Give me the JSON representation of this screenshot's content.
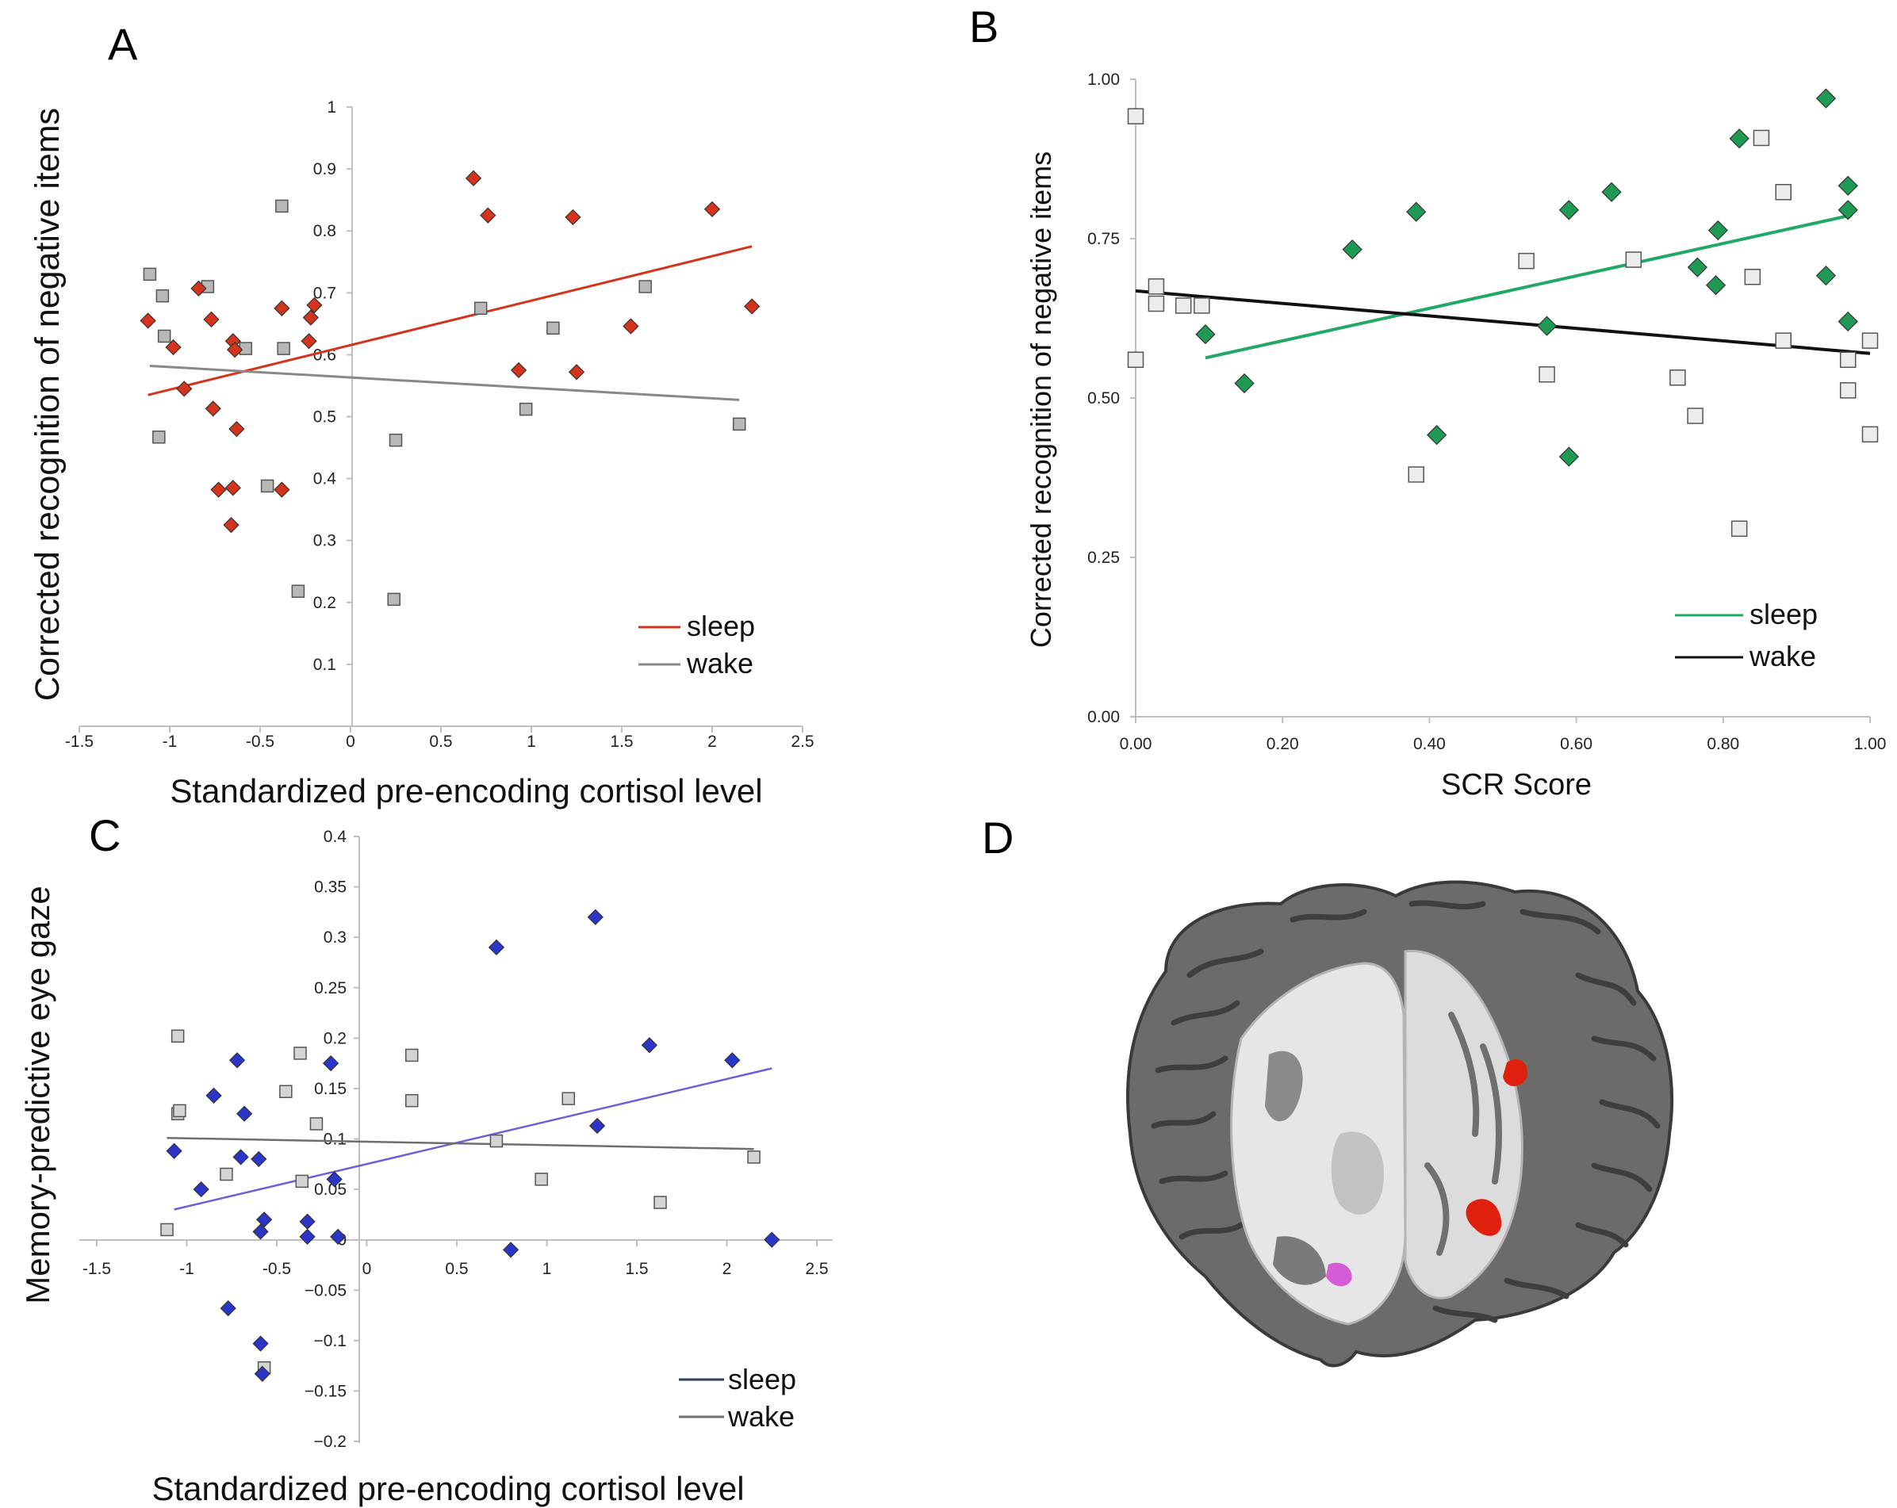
{
  "chart_data": [
    {
      "panel": "A",
      "type": "scatter",
      "xlabel": "Standardized pre-encoding cortisol level",
      "ylabel": "Corrected recognition of negative items",
      "xlim": [
        -1.5,
        2.5
      ],
      "ylim": [
        0,
        1
      ],
      "xticks": [
        -1.5,
        -1,
        -0.5,
        0,
        0.5,
        1,
        1.5,
        2,
        2.5
      ],
      "yticks": [
        0.1,
        0.2,
        0.3,
        0.4,
        0.5,
        0.6,
        0.7,
        0.8,
        0.9,
        1
      ],
      "xtick_labels": [
        "-1.5",
        "-1",
        "-0.5",
        "0",
        "0.5",
        "1",
        "1.5",
        "2",
        "2.5"
      ],
      "ytick_labels": [
        "0.1",
        "0.2",
        "0.3",
        "0.4",
        "0.5",
        "0.6",
        "0.7",
        "0.8",
        "0.9",
        "1"
      ],
      "legend_position": "bottom-right",
      "series": [
        {
          "name": "sleep",
          "marker": "diamond",
          "color": "#d4341c",
          "line_color": "#d4341c",
          "points": [
            [
              -1.12,
              0.655
            ],
            [
              -0.98,
              0.612
            ],
            [
              -0.92,
              0.545
            ],
            [
              -0.84,
              0.707
            ],
            [
              -0.77,
              0.657
            ],
            [
              -0.76,
              0.513
            ],
            [
              -0.73,
              0.382
            ],
            [
              -0.66,
              0.325
            ],
            [
              -0.65,
              0.385
            ],
            [
              -0.65,
              0.622
            ],
            [
              -0.64,
              0.608
            ],
            [
              -0.63,
              0.48
            ],
            [
              -0.38,
              0.382
            ],
            [
              -0.38,
              0.675
            ],
            [
              -0.23,
              0.622
            ],
            [
              -0.22,
              0.66
            ],
            [
              -0.2,
              0.68
            ],
            [
              0.68,
              0.885
            ],
            [
              0.76,
              0.825
            ],
            [
              0.93,
              0.575
            ],
            [
              1.23,
              0.822
            ],
            [
              1.25,
              0.572
            ],
            [
              1.55,
              0.646
            ],
            [
              2.0,
              0.835
            ],
            [
              2.22,
              0.678
            ]
          ],
          "trend": [
            [
              -1.12,
              0.535
            ],
            [
              2.22,
              0.775
            ]
          ]
        },
        {
          "name": "wake",
          "marker": "square",
          "color": "#b8b8b8",
          "line_color": "#888888",
          "points": [
            [
              -1.11,
              0.73
            ],
            [
              -1.06,
              0.467
            ],
            [
              -1.04,
              0.695
            ],
            [
              -1.03,
              0.63
            ],
            [
              -0.79,
              0.71
            ],
            [
              -0.58,
              0.61
            ],
            [
              -0.46,
              0.388
            ],
            [
              -0.38,
              0.84
            ],
            [
              -0.37,
              0.61
            ],
            [
              -0.29,
              0.218
            ],
            [
              0.24,
              0.205
            ],
            [
              0.25,
              0.462
            ],
            [
              0.72,
              0.675
            ],
            [
              0.97,
              0.512
            ],
            [
              1.12,
              0.643
            ],
            [
              1.63,
              0.71
            ],
            [
              2.15,
              0.488
            ]
          ],
          "trend": [
            [
              -1.11,
              0.582
            ],
            [
              2.15,
              0.527
            ]
          ]
        }
      ]
    },
    {
      "panel": "B",
      "type": "scatter",
      "xlabel": "SCR Score",
      "ylabel": "Corrected recognition of negative items",
      "xlim": [
        0,
        1
      ],
      "ylim": [
        0,
        1
      ],
      "xticks": [
        0,
        0.2,
        0.4,
        0.6,
        0.8,
        1.0
      ],
      "yticks": [
        0,
        0.25,
        0.5,
        0.75,
        1.0
      ],
      "xtick_labels": [
        "0.00",
        "0.20",
        "0.40",
        "0.60",
        "0.80",
        "1.00"
      ],
      "ytick_labels": [
        "0.00",
        "0.25",
        "0.50",
        "0.75",
        "1.00"
      ],
      "legend_position": "bottom-right",
      "series": [
        {
          "name": "sleep",
          "marker": "diamond",
          "color": "#1e9a55",
          "line_color": "#22a866",
          "points": [
            [
              0.095,
              0.6
            ],
            [
              0.148,
              0.523
            ],
            [
              0.295,
              0.733
            ],
            [
              0.382,
              0.792
            ],
            [
              0.41,
              0.442
            ],
            [
              0.56,
              0.613
            ],
            [
              0.59,
              0.408
            ],
            [
              0.59,
              0.795
            ],
            [
              0.648,
              0.823
            ],
            [
              0.765,
              0.705
            ],
            [
              0.79,
              0.677
            ],
            [
              0.793,
              0.763
            ],
            [
              0.822,
              0.907
            ],
            [
              0.94,
              0.97
            ],
            [
              0.94,
              0.692
            ],
            [
              0.97,
              0.833
            ],
            [
              0.97,
              0.795
            ],
            [
              0.97,
              0.62
            ]
          ],
          "trend": [
            [
              0.095,
              0.563
            ],
            [
              0.975,
              0.787
            ]
          ]
        },
        {
          "name": "wake",
          "marker": "square",
          "color": "#ececec",
          "line_color": "#111111",
          "points": [
            [
              0.0,
              0.942
            ],
            [
              0.0,
              0.56
            ],
            [
              0.028,
              0.675
            ],
            [
              0.028,
              0.648
            ],
            [
              0.065,
              0.645
            ],
            [
              0.09,
              0.645
            ],
            [
              0.382,
              0.38
            ],
            [
              0.532,
              0.715
            ],
            [
              0.56,
              0.537
            ],
            [
              0.678,
              0.717
            ],
            [
              0.738,
              0.532
            ],
            [
              0.762,
              0.472
            ],
            [
              0.822,
              0.295
            ],
            [
              0.84,
              0.69
            ],
            [
              0.852,
              0.908
            ],
            [
              0.882,
              0.823
            ],
            [
              0.882,
              0.59
            ],
            [
              0.97,
              0.56
            ],
            [
              0.97,
              0.512
            ],
            [
              1.0,
              0.59
            ],
            [
              1.0,
              0.443
            ]
          ],
          "trend": [
            [
              0.0,
              0.668
            ],
            [
              1.0,
              0.57
            ]
          ]
        }
      ]
    },
    {
      "panel": "C",
      "type": "scatter",
      "xlabel": "Standardized pre-encoding cortisol level",
      "ylabel": "Memory-predictive eye gaze",
      "xlim": [
        -1.5,
        2.5
      ],
      "ylim": [
        -0.2,
        0.4
      ],
      "xticks": [
        -1.5,
        -1,
        -0.5,
        0,
        0.5,
        1,
        1.5,
        2,
        2.5
      ],
      "yticks": [
        -0.2,
        -0.15,
        -0.1,
        -0.05,
        0,
        0.05,
        0.1,
        0.15,
        0.2,
        0.25,
        0.3,
        0.35,
        0.4
      ],
      "xtick_labels": [
        "-1.5",
        "-1",
        "-0.5",
        "0",
        "0.5",
        "1",
        "1.5",
        "2",
        "2.5"
      ],
      "ytick_labels": [
        "−0.2",
        "−0.15",
        "−0.1",
        "−0.05",
        "0",
        "0.05",
        "0.1",
        "0.15",
        "0.2",
        "0.25",
        "0.3",
        "0.35",
        "0.4"
      ],
      "legend_position": "bottom-right",
      "series": [
        {
          "name": "sleep",
          "marker": "diamond",
          "color": "#2b35c8",
          "line_color": "#6a5fd8",
          "legend_color": "#2f3f5a",
          "points": [
            [
              -1.07,
              0.088
            ],
            [
              -0.92,
              0.05
            ],
            [
              -0.85,
              0.143
            ],
            [
              -0.77,
              -0.068
            ],
            [
              -0.72,
              0.178
            ],
            [
              -0.7,
              0.082
            ],
            [
              -0.68,
              0.125
            ],
            [
              -0.6,
              0.08
            ],
            [
              -0.59,
              -0.103
            ],
            [
              -0.59,
              0.008
            ],
            [
              -0.58,
              -0.133
            ],
            [
              -0.57,
              0.02
            ],
            [
              -0.33,
              0.018
            ],
            [
              -0.33,
              0.003
            ],
            [
              -0.2,
              0.175
            ],
            [
              -0.18,
              0.06
            ],
            [
              -0.16,
              0.003
            ],
            [
              0.72,
              0.29
            ],
            [
              0.8,
              -0.01
            ],
            [
              1.27,
              0.32
            ],
            [
              1.28,
              0.113
            ],
            [
              1.57,
              0.193
            ],
            [
              2.03,
              0.178
            ],
            [
              2.25,
              0.0
            ]
          ],
          "trend": [
            [
              -1.07,
              0.03
            ],
            [
              2.25,
              0.17
            ]
          ]
        },
        {
          "name": "wake",
          "marker": "square",
          "color": "#d4d4d4",
          "line_color": "#6e6e6e",
          "points": [
            [
              -1.11,
              0.01
            ],
            [
              -1.05,
              0.202
            ],
            [
              -1.05,
              0.125
            ],
            [
              -1.04,
              0.128
            ],
            [
              -0.78,
              0.065
            ],
            [
              -0.45,
              0.147
            ],
            [
              -0.37,
              0.185
            ],
            [
              -0.36,
              0.058
            ],
            [
              -0.28,
              0.115
            ],
            [
              -0.57,
              -0.127
            ],
            [
              0.25,
              0.183
            ],
            [
              0.25,
              0.138
            ],
            [
              0.72,
              0.098
            ],
            [
              0.97,
              0.06
            ],
            [
              1.12,
              0.14
            ],
            [
              1.63,
              0.037
            ],
            [
              2.15,
              0.082
            ]
          ],
          "trend": [
            [
              -1.11,
              0.101
            ],
            [
              2.15,
              0.09
            ]
          ]
        }
      ]
    }
  ],
  "panels": {
    "A": {
      "letter": "A"
    },
    "B": {
      "letter": "B"
    },
    "C": {
      "letter": "C"
    },
    "D": {
      "letter": "D"
    }
  },
  "brain": {
    "description_icon": "brain-mri-rendering-icon",
    "cortex_color": "#6b6b6b",
    "white_matter_color": "#e6e6e6",
    "highlight_primary": "#e0200e",
    "highlight_secondary": "#d65bd6"
  }
}
